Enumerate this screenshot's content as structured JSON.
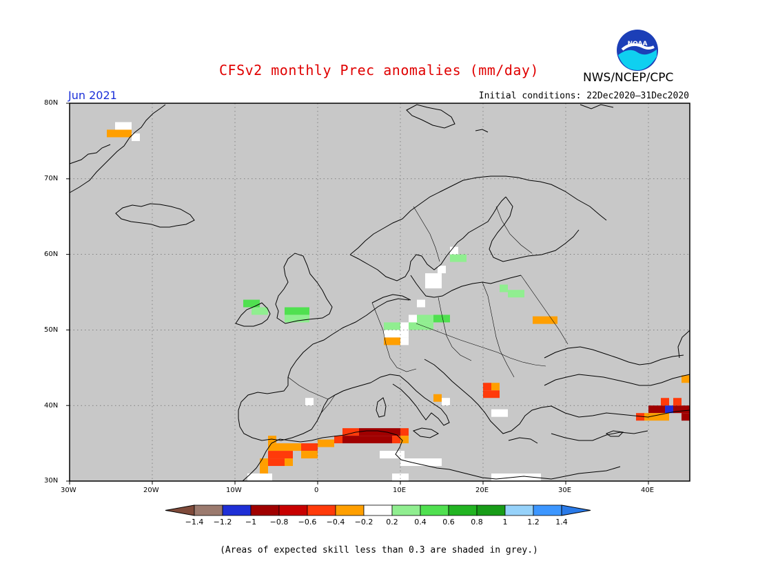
{
  "title": "CFSv2 monthly Prec anomalies (mm/day)",
  "organization": "NWS/NCEP/CPC",
  "logo_text": "NOAA",
  "valid_month": "Jun 2021",
  "initial_conditions": "Initial conditions: 22Dec2020–31Dec2020",
  "map": {
    "lon_range": [
      -30,
      45
    ],
    "lat_range": [
      30,
      80
    ],
    "background_color": "#c8c8c8",
    "lat_labels": [
      "80N",
      "70N",
      "60N",
      "50N",
      "40N",
      "30N"
    ],
    "lon_labels": [
      "30W",
      "20W",
      "10W",
      "0",
      "10E",
      "20E",
      "30E",
      "40E"
    ]
  },
  "colorbar": {
    "colors": [
      "#7f4a3a",
      "#9b7a6e",
      "#1f2fd6",
      "#a00000",
      "#c80000",
      "#ff3a0a",
      "#ff9f00",
      "#ffffff",
      "#90ee90",
      "#50e050",
      "#22b422",
      "#189c18",
      "#96d2fa",
      "#3c96ff",
      "#2a7ae8"
    ],
    "labels": [
      "-1.4",
      "-1.2",
      "-1",
      "-0.8",
      "-0.6",
      "-0.4",
      "-0.2",
      "0.2",
      "0.4",
      "0.6",
      "0.8",
      "1",
      "1.2",
      "1.4"
    ]
  },
  "note": "(Areas of expected skill less than 0.3 are shaded in grey.)",
  "anomaly_cells": [
    {
      "lon": -25.5,
      "lat": 76.0,
      "w": 3,
      "h": 1,
      "color": "#ff9f00"
    },
    {
      "lon": -24.5,
      "lat": 77.0,
      "w": 2,
      "h": 1,
      "color": "#ffffff"
    },
    {
      "lon": -22.5,
      "lat": 75.5,
      "w": 1,
      "h": 1,
      "color": "#ffffff"
    },
    {
      "lon": -9.0,
      "lat": 53.5,
      "w": 2,
      "h": 1,
      "color": "#50e050"
    },
    {
      "lon": -8.0,
      "lat": 52.5,
      "w": 2,
      "h": 1,
      "color": "#90ee90"
    },
    {
      "lon": -4.0,
      "lat": 52.5,
      "w": 3,
      "h": 1,
      "color": "#50e050"
    },
    {
      "lon": -4.0,
      "lat": 51.5,
      "w": 3,
      "h": 1,
      "color": "#90ee90"
    },
    {
      "lon": 8.0,
      "lat": 50.5,
      "w": 2,
      "h": 1,
      "color": "#90ee90"
    },
    {
      "lon": 10.0,
      "lat": 50.5,
      "w": 1,
      "h": 1,
      "color": "#ffffff"
    },
    {
      "lon": 11.0,
      "lat": 51.5,
      "w": 1,
      "h": 1,
      "color": "#ffffff"
    },
    {
      "lon": 12.0,
      "lat": 51.5,
      "w": 2,
      "h": 1,
      "color": "#90ee90"
    },
    {
      "lon": 14.0,
      "lat": 51.5,
      "w": 2,
      "h": 1,
      "color": "#50e050"
    },
    {
      "lon": 11.0,
      "lat": 50.5,
      "w": 3,
      "h": 1,
      "color": "#90ee90"
    },
    {
      "lon": 8.0,
      "lat": 49.5,
      "w": 3,
      "h": 1,
      "color": "#ffffff"
    },
    {
      "lon": 8.0,
      "lat": 48.5,
      "w": 2,
      "h": 1,
      "color": "#ff9f00"
    },
    {
      "lon": 10.0,
      "lat": 48.5,
      "w": 1,
      "h": 1,
      "color": "#ffffff"
    },
    {
      "lon": 12.0,
      "lat": 53.5,
      "w": 1,
      "h": 1,
      "color": "#ffffff"
    },
    {
      "lon": 13.0,
      "lat": 56.5,
      "w": 2,
      "h": 2,
      "color": "#ffffff"
    },
    {
      "lon": 14.5,
      "lat": 58.0,
      "w": 1,
      "h": 1,
      "color": "#ffffff"
    },
    {
      "lon": 16.0,
      "lat": 59.5,
      "w": 2,
      "h": 1,
      "color": "#90ee90"
    },
    {
      "lon": 16.0,
      "lat": 60.5,
      "w": 1,
      "h": 1,
      "color": "#ffffff"
    },
    {
      "lon": 22.0,
      "lat": 55.5,
      "w": 1,
      "h": 1,
      "color": "#90ee90"
    },
    {
      "lon": 23.0,
      "lat": 54.8,
      "w": 2,
      "h": 1,
      "color": "#90ee90"
    },
    {
      "lon": 26.0,
      "lat": 51.3,
      "w": 3,
      "h": 1,
      "color": "#ff9f00"
    },
    {
      "lon": 20.0,
      "lat": 42.5,
      "w": 1,
      "h": 1,
      "color": "#ff3a0a"
    },
    {
      "lon": 21.0,
      "lat": 42.5,
      "w": 1,
      "h": 1,
      "color": "#ff9f00"
    },
    {
      "lon": 20.0,
      "lat": 41.5,
      "w": 2,
      "h": 1,
      "color": "#ff3a0a"
    },
    {
      "lon": 14.0,
      "lat": 41.0,
      "w": 1,
      "h": 1,
      "color": "#ff9f00"
    },
    {
      "lon": 15.0,
      "lat": 40.5,
      "w": 1,
      "h": 1,
      "color": "#ffffff"
    },
    {
      "lon": -1.5,
      "lat": 40.5,
      "w": 1,
      "h": 1,
      "color": "#ffffff"
    },
    {
      "lon": 21.0,
      "lat": 39.0,
      "w": 2,
      "h": 1,
      "color": "#ffffff"
    },
    {
      "lon": 44.0,
      "lat": 43.5,
      "w": 1,
      "h": 1,
      "color": "#ff9f00"
    },
    {
      "lon": 40.0,
      "lat": 39.5,
      "w": 2,
      "h": 1,
      "color": "#a00000"
    },
    {
      "lon": 41.5,
      "lat": 40.5,
      "w": 1,
      "h": 1,
      "color": "#ff3a0a"
    },
    {
      "lon": 42.0,
      "lat": 39.5,
      "w": 1,
      "h": 1,
      "color": "#1f2fd6"
    },
    {
      "lon": 43.0,
      "lat": 39.5,
      "w": 2,
      "h": 1,
      "color": "#a00000"
    },
    {
      "lon": 43.0,
      "lat": 40.5,
      "w": 1,
      "h": 1,
      "color": "#ff3a0a"
    },
    {
      "lon": 44.0,
      "lat": 38.5,
      "w": 1,
      "h": 1,
      "color": "#a00000"
    },
    {
      "lon": 38.5,
      "lat": 38.5,
      "w": 1,
      "h": 1,
      "color": "#ff3a0a"
    },
    {
      "lon": 39.5,
      "lat": 38.5,
      "w": 3,
      "h": 1,
      "color": "#ff9f00"
    },
    {
      "lon": 3.0,
      "lat": 36.5,
      "w": 2,
      "h": 1,
      "color": "#ff3a0a"
    },
    {
      "lon": 5.0,
      "lat": 36.5,
      "w": 5,
      "h": 1,
      "color": "#a00000"
    },
    {
      "lon": 10.0,
      "lat": 36.5,
      "w": 1,
      "h": 1,
      "color": "#ff3a0a"
    },
    {
      "lon": 2.0,
      "lat": 35.5,
      "w": 1,
      "h": 1,
      "color": "#ff3a0a"
    },
    {
      "lon": 3.0,
      "lat": 35.5,
      "w": 6,
      "h": 1,
      "color": "#a00000"
    },
    {
      "lon": 9.0,
      "lat": 35.5,
      "w": 1,
      "h": 1,
      "color": "#ff3a0a"
    },
    {
      "lon": 10.0,
      "lat": 35.5,
      "w": 1,
      "h": 1,
      "color": "#ff9f00"
    },
    {
      "lon": -6.0,
      "lat": 35.5,
      "w": 1,
      "h": 1,
      "color": "#ff9f00"
    },
    {
      "lon": -6.0,
      "lat": 34.5,
      "w": 4,
      "h": 1,
      "color": "#ff9f00"
    },
    {
      "lon": -2.0,
      "lat": 34.5,
      "w": 2,
      "h": 1,
      "color": "#ff3a0a"
    },
    {
      "lon": 0.0,
      "lat": 35.0,
      "w": 2,
      "h": 1,
      "color": "#ff9f00"
    },
    {
      "lon": -6.0,
      "lat": 33.5,
      "w": 3,
      "h": 1,
      "color": "#ff3a0a"
    },
    {
      "lon": -2.0,
      "lat": 33.5,
      "w": 2,
      "h": 1,
      "color": "#ff9f00"
    },
    {
      "lon": -7.0,
      "lat": 32.5,
      "w": 1,
      "h": 1,
      "color": "#ff9f00"
    },
    {
      "lon": -6.0,
      "lat": 32.5,
      "w": 2,
      "h": 1,
      "color": "#ff3a0a"
    },
    {
      "lon": -4.0,
      "lat": 32.5,
      "w": 1,
      "h": 1,
      "color": "#ff9f00"
    },
    {
      "lon": -7.0,
      "lat": 31.5,
      "w": 1,
      "h": 1,
      "color": "#ff9f00"
    },
    {
      "lon": -8.5,
      "lat": 30.5,
      "w": 3,
      "h": 1,
      "color": "#ffffff"
    },
    {
      "lon": 7.5,
      "lat": 33.5,
      "w": 3,
      "h": 1,
      "color": "#ffffff"
    },
    {
      "lon": 10.0,
      "lat": 32.5,
      "w": 5,
      "h": 1,
      "color": "#ffffff"
    },
    {
      "lon": 9.0,
      "lat": 30.5,
      "w": 2,
      "h": 1,
      "color": "#ffffff"
    },
    {
      "lon": 21.0,
      "lat": 30.5,
      "w": 6,
      "h": 1,
      "color": "#ffffff"
    },
    {
      "lon": 25.0,
      "lat": 30.5,
      "w": 2,
      "h": 1,
      "color": "#ffffff"
    }
  ]
}
